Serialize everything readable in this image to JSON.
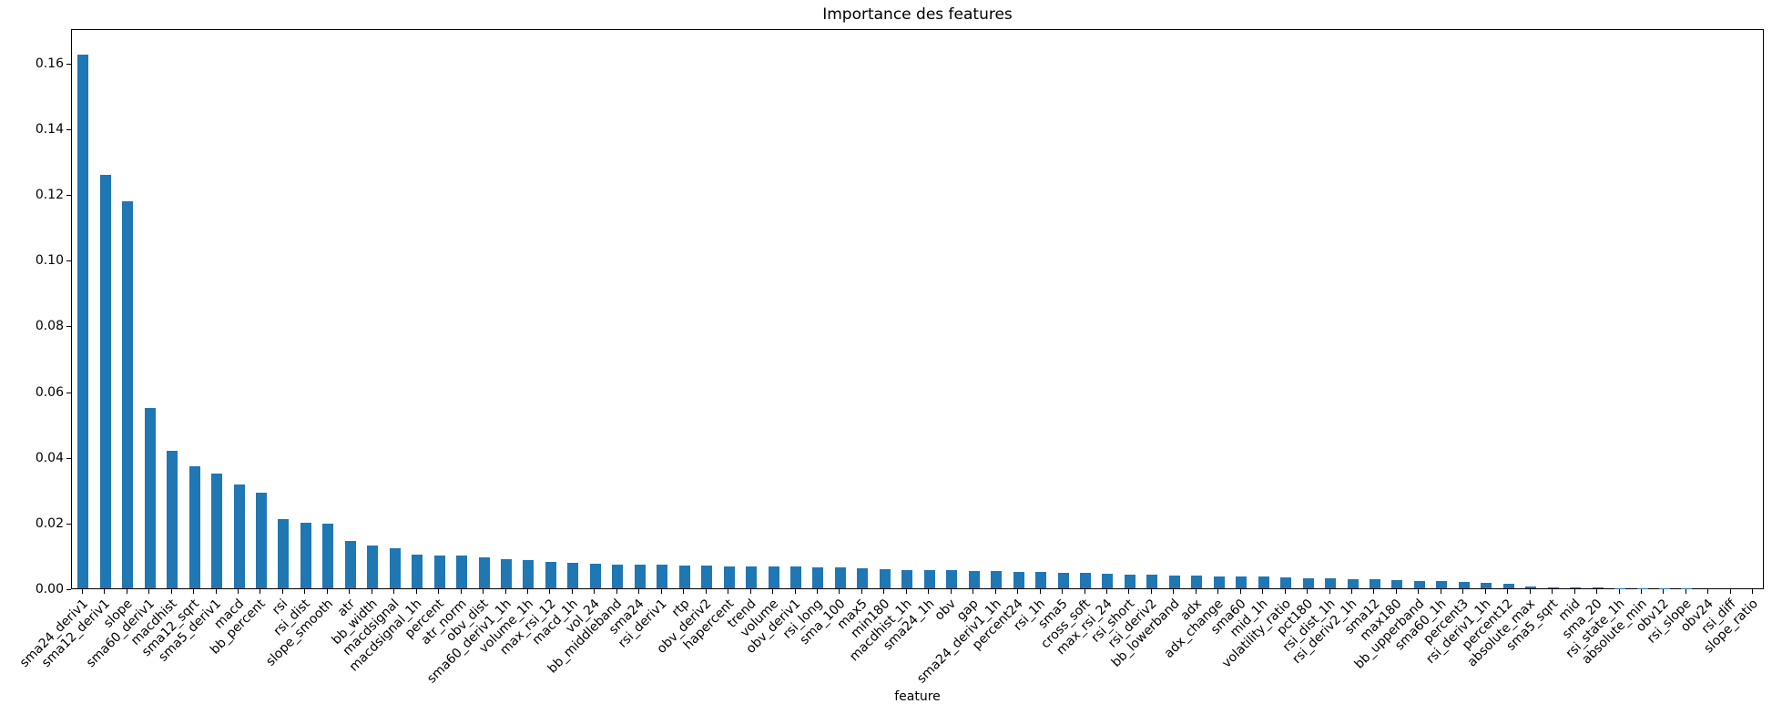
{
  "chart_data": {
    "type": "bar",
    "title": "Importance des features",
    "xlabel": "feature",
    "ylabel": "",
    "ylim": [
      0,
      0.1708
    ],
    "yticks": [
      0.0,
      0.02,
      0.04,
      0.06,
      0.08,
      0.1,
      0.12,
      0.14,
      0.16
    ],
    "grid": false,
    "legend": "none",
    "bar_color": "#1f77b4",
    "categories": [
      "sma24_deriv1",
      "sma12_deriv1",
      "slope",
      "sma60_deriv1",
      "macdhist",
      "sma12_sqrt",
      "sma5_deriv1",
      "macd",
      "bb_percent",
      "rsi",
      "rsi_dist",
      "slope_smooth",
      "atr",
      "bb_width",
      "macdsignal",
      "macdsignal_1h",
      "percent",
      "atr_norm",
      "obv_dist",
      "sma60_deriv1_1h",
      "volume_1h",
      "max_rsi_12",
      "macd_1h",
      "vol_24",
      "bb_middleband",
      "sma24",
      "rsi_deriv1",
      "rtp",
      "obv_deriv2",
      "hapercent",
      "trend",
      "volume",
      "obv_deriv1",
      "rsi_long",
      "sma_100",
      "max5",
      "min180",
      "macdhist_1h",
      "sma24_1h",
      "obv",
      "gap",
      "sma24_deriv1_1h",
      "percent24",
      "rsi_1h",
      "sma5",
      "cross_soft",
      "max_rsi_24",
      "rsi_short",
      "rsi_deriv2",
      "bb_lowerband",
      "adx",
      "adx_change",
      "sma60",
      "mid_1h",
      "volatility_ratio",
      "pct180",
      "rsi_dist_1h",
      "rsi_deriv2_1h",
      "sma12",
      "max180",
      "bb_upperband",
      "sma60_1h",
      "percent3",
      "rsi_deriv1_1h",
      "percent12",
      "absolute_max",
      "sma5_sqrt",
      "mid",
      "sma_20",
      "rsi_state_1h",
      "absolute_min",
      "obv12",
      "rsi_slope",
      "obv24",
      "rsi_diff",
      "slope_ratio"
    ],
    "values": [
      0.1628,
      0.1262,
      0.1181,
      0.0549,
      0.042,
      0.0372,
      0.035,
      0.0318,
      0.0291,
      0.0212,
      0.0199,
      0.0198,
      0.0145,
      0.0131,
      0.0123,
      0.0103,
      0.0101,
      0.01,
      0.0094,
      0.0089,
      0.0085,
      0.0081,
      0.0078,
      0.0075,
      0.0073,
      0.0072,
      0.0071,
      0.007,
      0.0069,
      0.0068,
      0.0068,
      0.0067,
      0.0066,
      0.0065,
      0.0063,
      0.0061,
      0.0058,
      0.0057,
      0.0056,
      0.0055,
      0.0054,
      0.0053,
      0.0051,
      0.0049,
      0.0048,
      0.0047,
      0.0045,
      0.0043,
      0.0041,
      0.0039,
      0.0038,
      0.0037,
      0.0036,
      0.0035,
      0.0034,
      0.0032,
      0.003,
      0.0028,
      0.0028,
      0.0025,
      0.0023,
      0.0021,
      0.002,
      0.0016,
      0.0015,
      0.0006,
      0.0003,
      0.0002,
      0.0002,
      0.0001,
      0.0001,
      0.0001,
      0.0001,
      0.0,
      0.0,
      0.0
    ]
  }
}
